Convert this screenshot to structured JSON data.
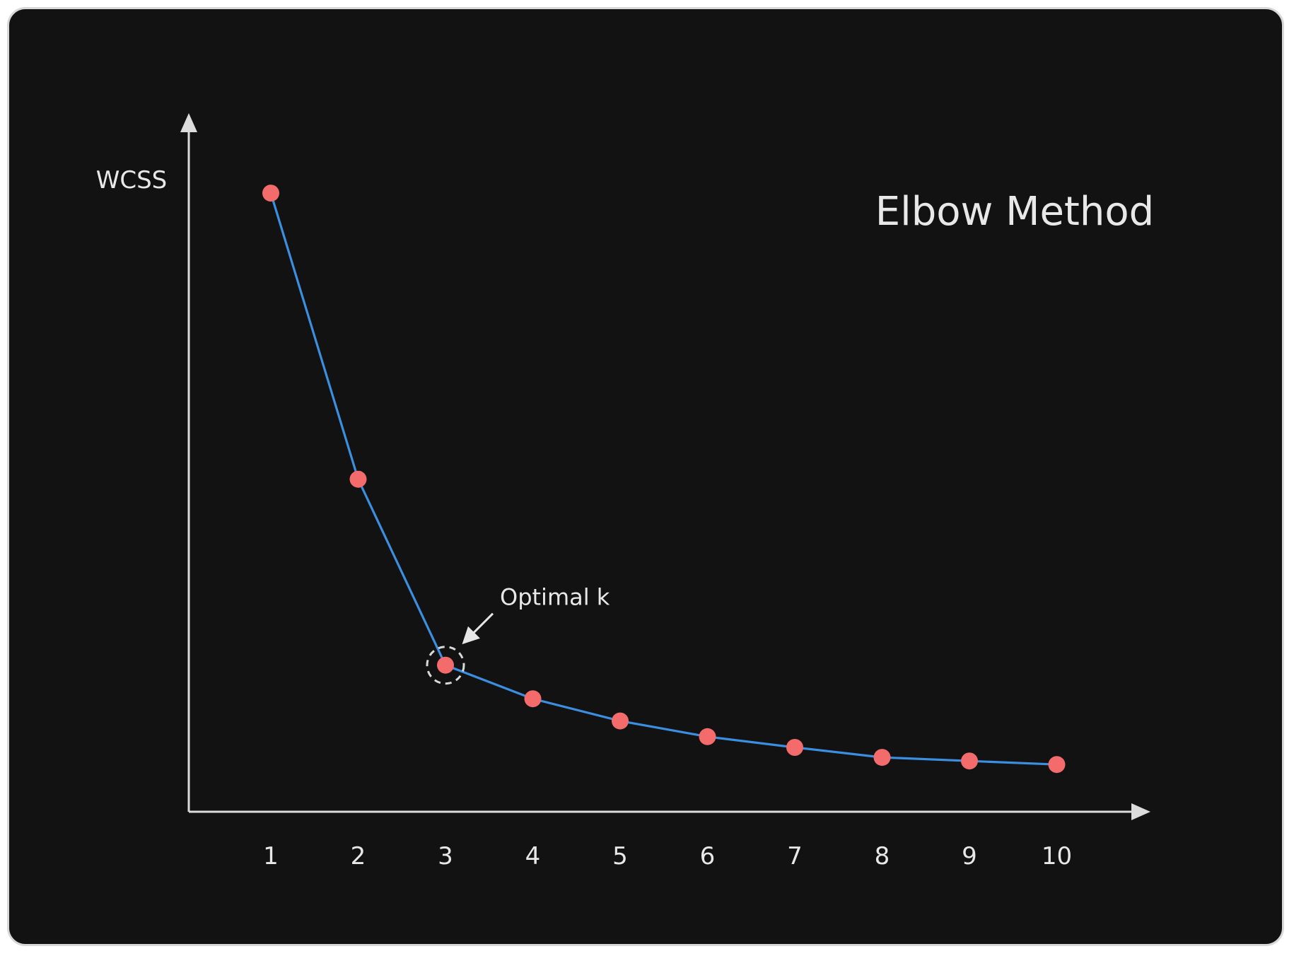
{
  "chart_data": {
    "type": "line",
    "title": "Elbow Method",
    "xlabel": "",
    "ylabel": "WCSS",
    "categories": [
      "1",
      "2",
      "3",
      "4",
      "5",
      "6",
      "7",
      "8",
      "9",
      "10"
    ],
    "x": [
      1,
      2,
      3,
      4,
      5,
      6,
      7,
      8,
      9,
      10
    ],
    "values": [
      100,
      60,
      34,
      29.3,
      26.2,
      24.0,
      22.5,
      21.1,
      20.6,
      20.1
    ],
    "ylim": [
      13.5,
      110
    ],
    "grid": false,
    "annotation": {
      "text": "Optimal k",
      "target_x": 3
    },
    "colors": {
      "line": "#3b8ee0",
      "points": "#f36b6b",
      "axes": "#dcdcdc",
      "text": "#e8e8e8",
      "background": "#121212"
    }
  }
}
